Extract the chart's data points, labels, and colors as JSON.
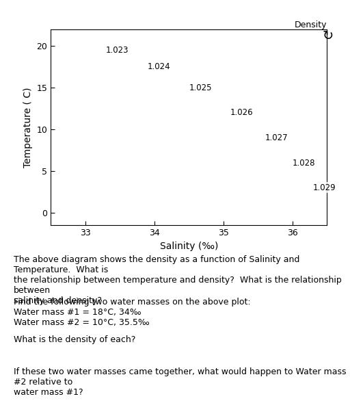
{
  "title": "Density",
  "xlabel": "Salinity (‰)",
  "ylabel": "Temperature ( C)",
  "xlim": [
    32.5,
    36.5
  ],
  "ylim": [
    -1.5,
    22
  ],
  "xticks": [
    33,
    34,
    35,
    36
  ],
  "yticks": [
    0,
    5,
    10,
    15,
    20
  ],
  "density_levels": [
    1.023,
    1.024,
    1.025,
    1.026,
    1.027,
    1.028,
    1.029
  ],
  "density_labels": [
    "1.023",
    "1.024",
    "1.025",
    "1.026",
    "1.027",
    "1.028",
    "1.029"
  ],
  "line_color": "#2e8b57",
  "bg_color": "#ffffff",
  "outer_bg": "#d4c97a",
  "text_paragraphs": [
    "The above diagram shows the density as a function of Salinity and Temperature.  What is\nthe relationship between temperature and density?  What is the relationship between\nsalinity and density?",
    "Find the following two water masses on the above plot:\nWater mass #1 = 18°C, 34‰\nWater mass #2 = 10°C, 35.5‰",
    "What is the density of each?",
    "If these two water masses came together, what would happen to Water mass #2 relative to\nwater mass #1?"
  ],
  "text_fontsize": 9,
  "axis_label_fontsize": 10,
  "density_label_fontsize": 8.5
}
